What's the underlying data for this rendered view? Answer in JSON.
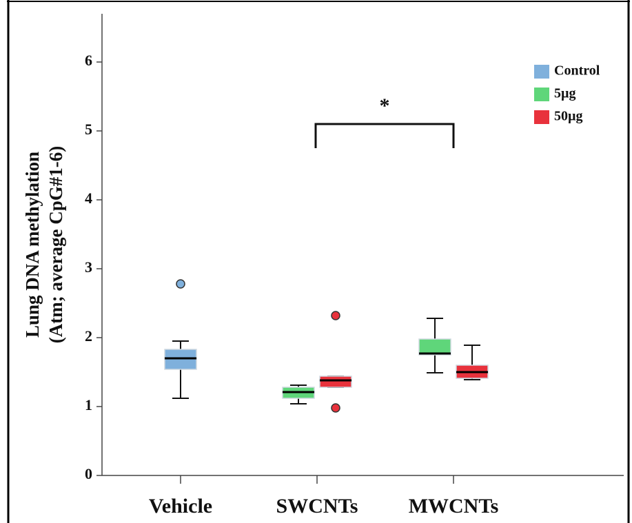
{
  "chart_data": {
    "type": "box",
    "ylabel": [
      "Lung DNA methylation",
      "(Atm; average CpG#1-6)"
    ],
    "categories": [
      "Vehicle",
      "SWCNTs",
      "MWCNTs"
    ],
    "ylim": [
      0,
      6.7
    ],
    "yticks": [
      0,
      1,
      2,
      3,
      4,
      5,
      6
    ],
    "legend": "top-right",
    "annotation": "*",
    "series": [
      {
        "name": "Control",
        "color": "#7fb0dc",
        "values": [
          {
            "min": 1.12,
            "q1": 1.54,
            "median": 1.7,
            "q3": 1.83,
            "max": 1.95,
            "outliers": [
              2.78
            ]
          },
          null,
          null
        ]
      },
      {
        "name": "5µg",
        "color": "#5fd67a",
        "values": [
          null,
          {
            "min": 1.04,
            "q1": 1.12,
            "median": 1.21,
            "q3": 1.28,
            "max": 1.31,
            "outliers": []
          },
          {
            "min": 1.49,
            "q1": 1.75,
            "median": 1.77,
            "q3": 1.98,
            "max": 2.28,
            "outliers": []
          }
        ]
      },
      {
        "name": "50µg",
        "color": "#e8323c",
        "values": [
          null,
          {
            "min": 1.28,
            "q1": 1.28,
            "median": 1.38,
            "q3": 1.44,
            "max": 1.44,
            "outliers": [
              2.32,
              0.98
            ]
          },
          {
            "min": 1.39,
            "q1": 1.41,
            "median": 1.5,
            "q3": 1.6,
            "max": 1.89,
            "outliers": []
          }
        ]
      }
    ]
  }
}
